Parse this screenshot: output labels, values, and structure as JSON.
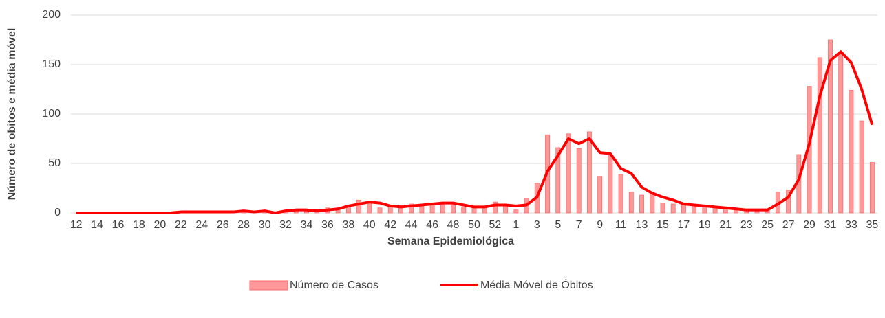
{
  "chart_data": {
    "type": "bar_line",
    "xlabel": "Semana Epidemiológica",
    "ylabel": "Número de obitos e média móvel",
    "categories": [
      "12",
      null,
      "14",
      null,
      "16",
      null,
      "18",
      null,
      "20",
      null,
      "22",
      null,
      "24",
      null,
      "26",
      null,
      "28",
      null,
      "30",
      null,
      "32",
      null,
      "34",
      null,
      "36",
      null,
      "38",
      null,
      "40",
      null,
      "42",
      null,
      "44",
      null,
      "46",
      null,
      "48",
      null,
      "50",
      null,
      "52",
      null,
      "1",
      null,
      "3",
      null,
      "5",
      null,
      "7",
      null,
      "9",
      null,
      "11",
      null,
      "13",
      null,
      "15",
      null,
      "17",
      null,
      "19",
      null,
      "21",
      null,
      "23",
      null,
      "25",
      null,
      "27",
      null,
      "29",
      null,
      "31",
      null,
      "33",
      null,
      "35"
    ],
    "series": [
      {
        "name": "Número de Casos",
        "kind": "bar",
        "color": "#ff9999",
        "values": [
          0,
          0,
          0,
          0,
          0,
          0,
          0,
          0,
          0,
          0,
          1,
          1,
          1,
          1,
          1,
          1,
          2,
          1,
          1,
          0,
          2,
          2,
          2,
          2,
          5,
          4,
          7,
          13,
          11,
          5,
          7,
          8,
          9,
          8,
          9,
          10,
          10,
          6,
          5,
          6,
          11,
          8,
          3,
          15,
          30,
          79,
          66,
          80,
          65,
          82,
          37,
          58,
          39,
          21,
          18,
          20,
          10,
          9,
          10,
          9,
          8,
          6,
          5,
          4,
          2,
          3,
          3,
          21,
          23,
          59,
          128,
          157,
          175,
          160,
          124,
          93,
          51
        ]
      },
      {
        "name": "Média Móvel de Óbitos",
        "kind": "line",
        "color": "#ff0000",
        "values": [
          0,
          0,
          0,
          0,
          0,
          0,
          0,
          0,
          0,
          0,
          1,
          1,
          1,
          1,
          1,
          1,
          2,
          1,
          2,
          0,
          2,
          3,
          3,
          2,
          3,
          4,
          7,
          9,
          11,
          10,
          7,
          6,
          7,
          8,
          9,
          10,
          10,
          8,
          6,
          6,
          8,
          8,
          7,
          8,
          16,
          42,
          58,
          75,
          70,
          75,
          61,
          60,
          45,
          40,
          26,
          20,
          16,
          13,
          9,
          8,
          7,
          6,
          5,
          4,
          3,
          3,
          3,
          9,
          16,
          34,
          70,
          118,
          154,
          163,
          152,
          125,
          89
        ]
      }
    ],
    "ylim": [
      0,
      200
    ],
    "yticks": [
      0,
      50,
      100,
      150,
      200
    ],
    "grid": true,
    "legend": "bottom"
  }
}
